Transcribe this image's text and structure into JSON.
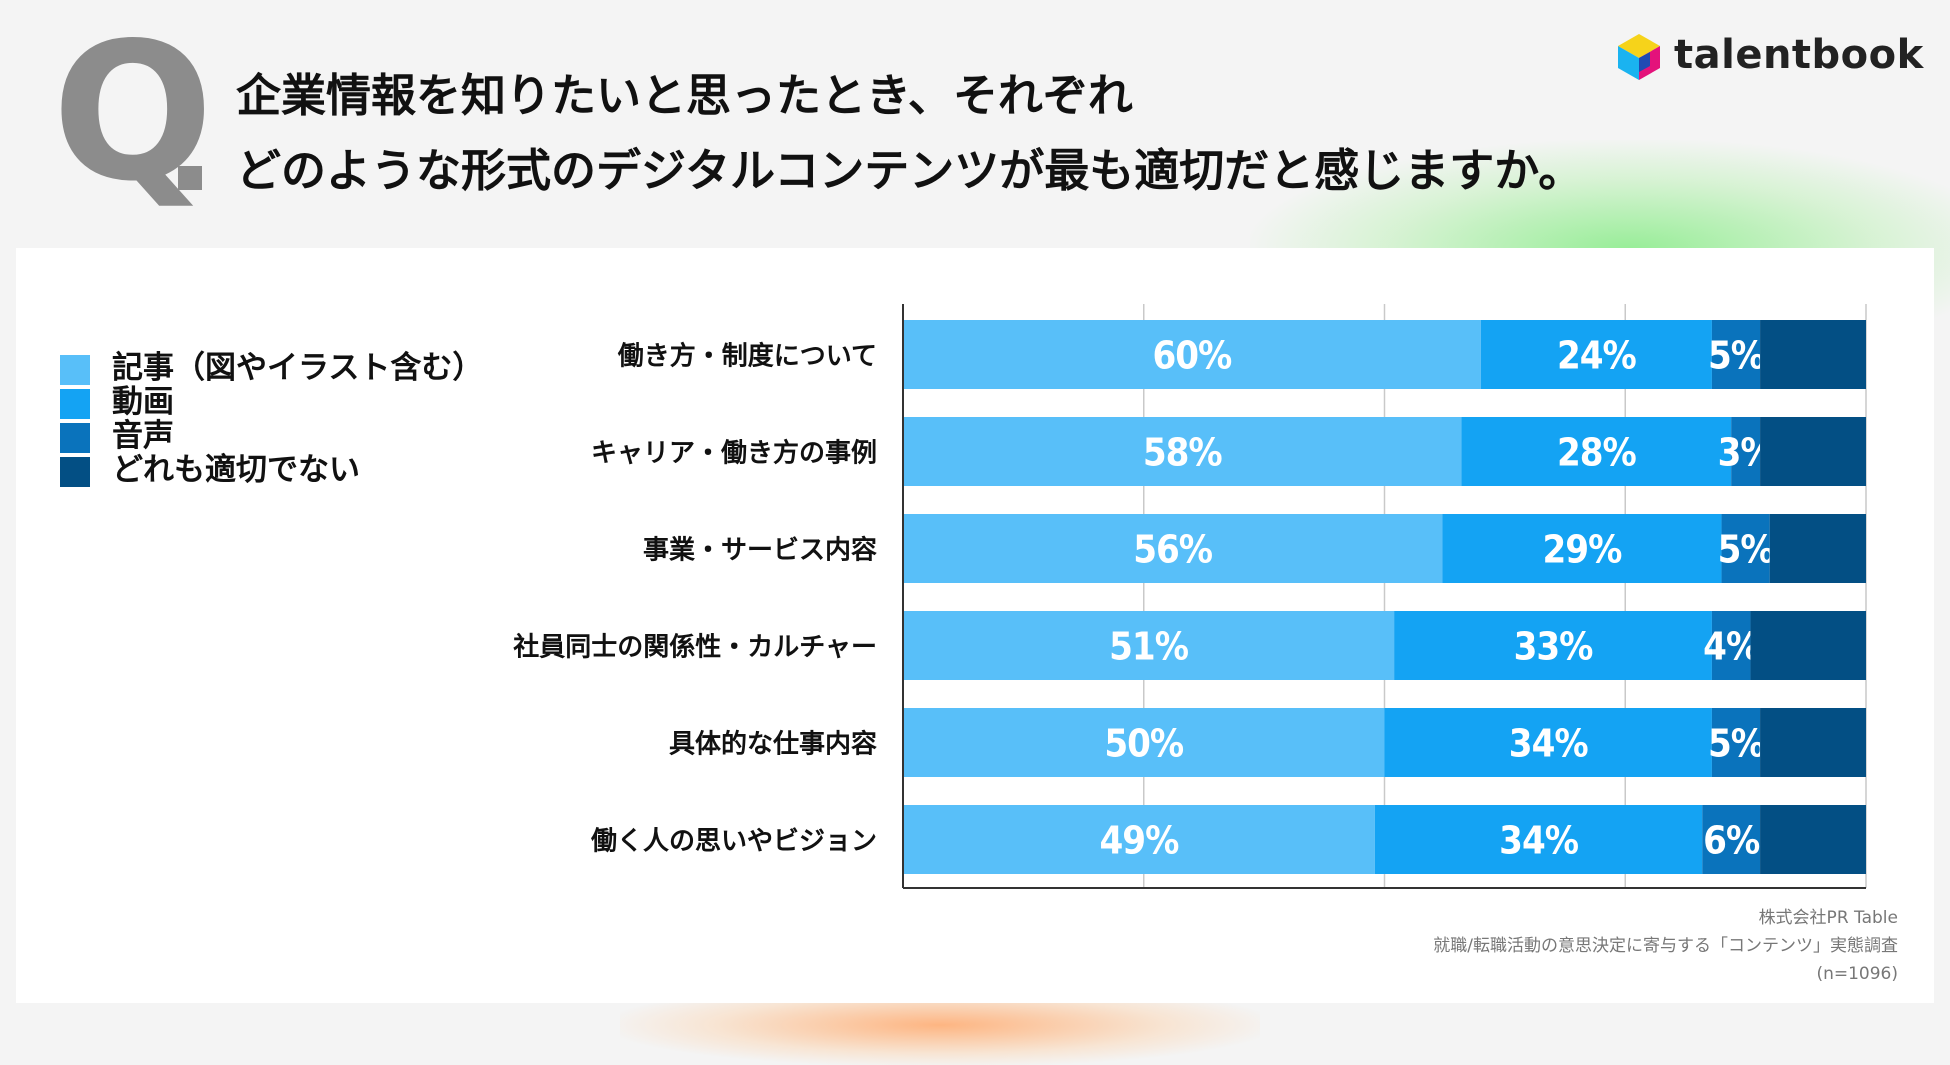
{
  "title": {
    "q_mark": "Q",
    "line1": "企業情報を知りたいと思ったとき、それぞれ",
    "line2": "どのような形式のデジタルコンテンツが最も適切だと感じますか。"
  },
  "brand": {
    "name": "talentbook",
    "colors": {
      "cyan": "#1ab3f0",
      "yellow": "#f6d31a",
      "magenta": "#e4127b",
      "blue": "#1f4bb3"
    }
  },
  "source": {
    "company": "株式会社PR Table",
    "survey": "就職/転職活動の意思決定に寄与する「コンテンツ」実態調査",
    "n": "(n=1096)"
  },
  "chart_data": {
    "type": "bar",
    "orientation": "horizontal",
    "stacked": true,
    "title": "",
    "xlabel": "",
    "ylabel": "",
    "xlim": [
      0,
      100
    ],
    "grid": true,
    "gridlines": [
      25,
      50,
      75,
      100
    ],
    "legend_position": "left",
    "categories": [
      "働き方・制度について",
      "キャリア・働き方の事例",
      "事業・サービス内容",
      "社員同士の関係性・カルチャー",
      "具体的な仕事内容",
      "働く人の思いやビジョン"
    ],
    "series": [
      {
        "name": "記事（図やイラスト含む）",
        "color": "#58bff9",
        "values": [
          60,
          58,
          56,
          51,
          50,
          49
        ]
      },
      {
        "name": "動画",
        "color": "#14a3f3",
        "values": [
          24,
          28,
          29,
          33,
          34,
          34
        ]
      },
      {
        "name": "音声",
        "color": "#0a73bc",
        "values": [
          5,
          3,
          5,
          4,
          5,
          6
        ]
      },
      {
        "name": "どれも適切でない",
        "color": "#034f84",
        "values": [
          11,
          11,
          10,
          12,
          11,
          11
        ]
      }
    ],
    "data_labels": [
      [
        "60%",
        "24%",
        "5%"
      ],
      [
        "58%",
        "28%",
        "3%"
      ],
      [
        "56%",
        "29%",
        "5%"
      ],
      [
        "51%",
        "33%",
        "4%"
      ],
      [
        "50%",
        "34%",
        "5%"
      ],
      [
        "49%",
        "34%",
        "6%"
      ]
    ]
  }
}
